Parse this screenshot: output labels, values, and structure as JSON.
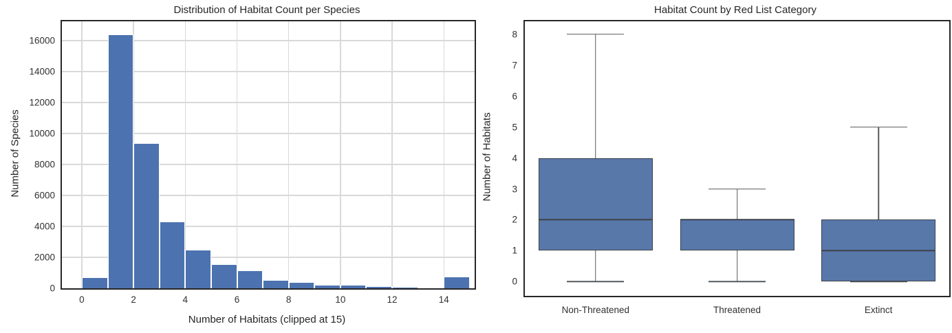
{
  "figure": {
    "background_color": "#FFFFFF",
    "text_color": "#262626"
  },
  "chart_data": [
    {
      "type": "bar",
      "subtype": "histogram",
      "title": "Distribution of Habitat Count per Species",
      "xlabel": "Number of Habitats (clipped at 15)",
      "ylabel": "Number of Species",
      "bin_edges": [
        0,
        1,
        2,
        3,
        4,
        5,
        6,
        7,
        8,
        9,
        10,
        11,
        12,
        13,
        14,
        15
      ],
      "values": [
        700,
        16400,
        9400,
        4300,
        2480,
        1540,
        1150,
        520,
        390,
        210,
        220,
        130,
        80,
        0,
        740
      ],
      "x_ticks": [
        0,
        2,
        4,
        6,
        8,
        10,
        12,
        14
      ],
      "y_ticks": [
        0,
        2000,
        4000,
        6000,
        8000,
        10000,
        12000,
        14000,
        16000
      ],
      "xlim": [
        -0.77,
        15.19
      ],
      "ylim": [
        0,
        17250
      ],
      "grid": true,
      "grid_color": "#D9D9D9",
      "bar_color": "#4C72B0",
      "bar_edge_color": "#FFFFFF",
      "legend": null
    },
    {
      "type": "box",
      "title": "Habitat Count by Red List Category",
      "xlabel": "",
      "ylabel": "Number of Habitats",
      "categories": [
        "Non-Threatened",
        "Threatened",
        "Extinct"
      ],
      "y_ticks": [
        0,
        1,
        2,
        3,
        4,
        5,
        6,
        7,
        8
      ],
      "ylim": [
        -0.46,
        8.42
      ],
      "grid": false,
      "box_fill_color": "#5878AA",
      "box_edge_color": "#3D4148",
      "whisker_color": "#54585C",
      "boxes": [
        {
          "category": "Non-Threatened",
          "whisker_low": 0,
          "q1": 1,
          "median": 2,
          "q3": 4,
          "whisker_high": 8
        },
        {
          "category": "Threatened",
          "whisker_low": 0,
          "q1": 1,
          "median": 2,
          "q3": 2,
          "whisker_high": 3
        },
        {
          "category": "Extinct",
          "whisker_low": 0,
          "q1": 0,
          "median": 1,
          "q3": 2,
          "whisker_high": 5
        }
      ],
      "legend": null
    }
  ]
}
